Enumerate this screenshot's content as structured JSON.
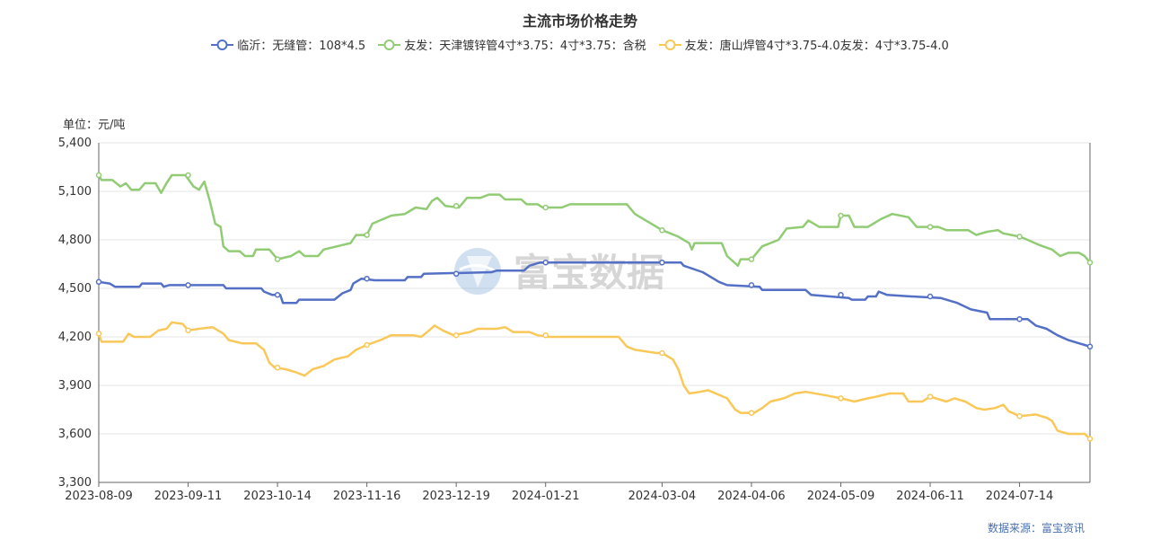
{
  "chart_data": {
    "type": "line",
    "title": "主流市场价格走势",
    "ylabel": "单位：元/吨",
    "ylim": [
      3300,
      5400
    ],
    "yticks": [
      "5,400",
      "5,100",
      "4,800",
      "4,500",
      "4,200",
      "3,900",
      "3,600",
      "3,300"
    ],
    "ytick_values": [
      5400,
      5100,
      4800,
      4500,
      4200,
      3900,
      3600,
      3300
    ],
    "x_range": [
      "2023-08-09",
      "2024-08-09"
    ],
    "xticks": [
      "2023-08-09",
      "2023-09-11",
      "2023-10-14",
      "2023-11-16",
      "2023-12-19",
      "2024-01-21",
      "2024-03-04",
      "2024-04-06",
      "2024-05-09",
      "2024-06-11",
      "2024-07-14"
    ],
    "grid": true,
    "legend": "top-center",
    "series": [
      {
        "name": "临沂：无缝管：108*4.5",
        "color": "#5470c6",
        "points": [
          [
            "2023-08-09",
            4540
          ],
          [
            "2023-08-13",
            4530
          ],
          [
            "2023-08-15",
            4510
          ],
          [
            "2023-08-24",
            4510
          ],
          [
            "2023-08-25",
            4530
          ],
          [
            "2023-09-01",
            4530
          ],
          [
            "2023-09-02",
            4510
          ],
          [
            "2023-09-04",
            4520
          ],
          [
            "2023-09-24",
            4520
          ],
          [
            "2023-09-25",
            4500
          ],
          [
            "2023-10-08",
            4500
          ],
          [
            "2023-10-09",
            4480
          ],
          [
            "2023-10-12",
            4460
          ],
          [
            "2023-10-15",
            4460
          ],
          [
            "2023-10-16",
            4410
          ],
          [
            "2023-10-21",
            4410
          ],
          [
            "2023-10-22",
            4430
          ],
          [
            "2023-11-04",
            4430
          ],
          [
            "2023-11-07",
            4470
          ],
          [
            "2023-11-10",
            4490
          ],
          [
            "2023-11-11",
            4530
          ],
          [
            "2023-11-14",
            4560
          ],
          [
            "2023-11-19",
            4550
          ],
          [
            "2023-11-30",
            4550
          ],
          [
            "2023-12-01",
            4570
          ],
          [
            "2023-12-06",
            4570
          ],
          [
            "2023-12-07",
            4590
          ],
          [
            "2024-01-01",
            4600
          ],
          [
            "2024-01-03",
            4610
          ],
          [
            "2024-01-13",
            4610
          ],
          [
            "2024-01-15",
            4640
          ],
          [
            "2024-01-19",
            4660
          ],
          [
            "2024-03-11",
            4660
          ],
          [
            "2024-03-12",
            4640
          ],
          [
            "2024-03-19",
            4600
          ],
          [
            "2024-03-21",
            4580
          ],
          [
            "2024-03-25",
            4540
          ],
          [
            "2024-03-28",
            4520
          ],
          [
            "2024-04-09",
            4510
          ],
          [
            "2024-04-10",
            4490
          ],
          [
            "2024-04-26",
            4490
          ],
          [
            "2024-04-28",
            4460
          ],
          [
            "2024-05-12",
            4440
          ],
          [
            "2024-05-13",
            4430
          ],
          [
            "2024-05-18",
            4430
          ],
          [
            "2024-05-19",
            4450
          ],
          [
            "2024-05-22",
            4450
          ],
          [
            "2024-05-23",
            4480
          ],
          [
            "2024-05-26",
            4460
          ],
          [
            "2024-06-04",
            4450
          ],
          [
            "2024-06-15",
            4440
          ],
          [
            "2024-06-19",
            4420
          ],
          [
            "2024-06-21",
            4410
          ],
          [
            "2024-06-26",
            4370
          ],
          [
            "2024-07-02",
            4350
          ],
          [
            "2024-07-03",
            4310
          ],
          [
            "2024-07-17",
            4310
          ],
          [
            "2024-07-20",
            4270
          ],
          [
            "2024-07-24",
            4250
          ],
          [
            "2024-07-28",
            4210
          ],
          [
            "2024-08-01",
            4180
          ],
          [
            "2024-08-05",
            4160
          ],
          [
            "2024-08-07",
            4150
          ],
          [
            "2024-08-09",
            4140
          ]
        ]
      },
      {
        "name": "友发：天津镀锌管4寸*3.75：4寸*3.75：含税",
        "color": "#91cc75",
        "points": [
          [
            "2023-08-09",
            5200
          ],
          [
            "2023-08-10",
            5170
          ],
          [
            "2023-08-14",
            5170
          ],
          [
            "2023-08-17",
            5130
          ],
          [
            "2023-08-19",
            5150
          ],
          [
            "2023-08-21",
            5110
          ],
          [
            "2023-08-24",
            5110
          ],
          [
            "2023-08-26",
            5150
          ],
          [
            "2023-08-30",
            5150
          ],
          [
            "2023-09-01",
            5090
          ],
          [
            "2023-09-03",
            5150
          ],
          [
            "2023-09-05",
            5200
          ],
          [
            "2023-09-10",
            5200
          ],
          [
            "2023-09-13",
            5130
          ],
          [
            "2023-09-15",
            5110
          ],
          [
            "2023-09-17",
            5160
          ],
          [
            "2023-09-19",
            5040
          ],
          [
            "2023-09-21",
            4900
          ],
          [
            "2023-09-23",
            4880
          ],
          [
            "2023-09-24",
            4760
          ],
          [
            "2023-09-26",
            4730
          ],
          [
            "2023-09-30",
            4730
          ],
          [
            "2023-10-02",
            4700
          ],
          [
            "2023-10-05",
            4700
          ],
          [
            "2023-10-06",
            4740
          ],
          [
            "2023-10-11",
            4740
          ],
          [
            "2023-10-14",
            4680
          ],
          [
            "2023-10-19",
            4700
          ],
          [
            "2023-10-22",
            4730
          ],
          [
            "2023-10-24",
            4700
          ],
          [
            "2023-10-29",
            4700
          ],
          [
            "2023-10-31",
            4740
          ],
          [
            "2023-11-05",
            4760
          ],
          [
            "2023-11-10",
            4780
          ],
          [
            "2023-11-12",
            4830
          ],
          [
            "2023-11-16",
            4830
          ],
          [
            "2023-11-18",
            4900
          ],
          [
            "2023-11-25",
            4950
          ],
          [
            "2023-11-30",
            4960
          ],
          [
            "2023-12-04",
            5000
          ],
          [
            "2023-12-08",
            4990
          ],
          [
            "2023-12-10",
            5040
          ],
          [
            "2023-12-12",
            5060
          ],
          [
            "2023-12-15",
            5010
          ],
          [
            "2023-12-20",
            5000
          ],
          [
            "2023-12-23",
            5060
          ],
          [
            "2023-12-28",
            5060
          ],
          [
            "2023-12-31",
            5080
          ],
          [
            "2024-01-04",
            5080
          ],
          [
            "2024-01-06",
            5050
          ],
          [
            "2024-01-12",
            5050
          ],
          [
            "2024-01-14",
            5020
          ],
          [
            "2024-01-18",
            5020
          ],
          [
            "2024-01-20",
            5000
          ],
          [
            "2024-01-27",
            5000
          ],
          [
            "2024-01-30",
            5020
          ],
          [
            "2024-02-20",
            5020
          ],
          [
            "2024-02-23",
            4960
          ],
          [
            "2024-02-27",
            4920
          ],
          [
            "2024-03-02",
            4880
          ],
          [
            "2024-03-04",
            4860
          ],
          [
            "2024-03-10",
            4820
          ],
          [
            "2024-03-14",
            4780
          ],
          [
            "2024-03-15",
            4740
          ],
          [
            "2024-03-16",
            4780
          ],
          [
            "2024-03-26",
            4780
          ],
          [
            "2024-03-28",
            4700
          ],
          [
            "2024-04-01",
            4640
          ],
          [
            "2024-04-02",
            4680
          ],
          [
            "2024-04-06",
            4680
          ],
          [
            "2024-04-10",
            4760
          ],
          [
            "2024-04-16",
            4800
          ],
          [
            "2024-04-19",
            4870
          ],
          [
            "2024-04-25",
            4880
          ],
          [
            "2024-04-27",
            4920
          ],
          [
            "2024-05-01",
            4880
          ],
          [
            "2024-05-08",
            4880
          ],
          [
            "2024-05-09",
            4950
          ],
          [
            "2024-05-12",
            4950
          ],
          [
            "2024-05-14",
            4880
          ],
          [
            "2024-05-19",
            4880
          ],
          [
            "2024-05-22",
            4910
          ],
          [
            "2024-05-24",
            4930
          ],
          [
            "2024-05-28",
            4960
          ],
          [
            "2024-06-03",
            4940
          ],
          [
            "2024-06-06",
            4880
          ],
          [
            "2024-06-14",
            4880
          ],
          [
            "2024-06-17",
            4860
          ],
          [
            "2024-06-25",
            4860
          ],
          [
            "2024-06-28",
            4830
          ],
          [
            "2024-07-02",
            4850
          ],
          [
            "2024-07-06",
            4860
          ],
          [
            "2024-07-08",
            4840
          ],
          [
            "2024-07-14",
            4820
          ],
          [
            "2024-07-17",
            4800
          ],
          [
            "2024-07-21",
            4770
          ],
          [
            "2024-07-26",
            4740
          ],
          [
            "2024-07-29",
            4700
          ],
          [
            "2024-08-01",
            4720
          ],
          [
            "2024-08-05",
            4720
          ],
          [
            "2024-08-07",
            4700
          ],
          [
            "2024-08-09",
            4660
          ]
        ]
      },
      {
        "name": "友发：唐山焊管4寸*3.75-4.0友发：4寸*3.75-4.0",
        "color": "#fac858",
        "points": [
          [
            "2023-08-09",
            4220
          ],
          [
            "2023-08-10",
            4170
          ],
          [
            "2023-08-18",
            4170
          ],
          [
            "2023-08-20",
            4220
          ],
          [
            "2023-08-22",
            4200
          ],
          [
            "2023-08-28",
            4200
          ],
          [
            "2023-08-31",
            4240
          ],
          [
            "2023-09-03",
            4250
          ],
          [
            "2023-09-05",
            4290
          ],
          [
            "2023-09-09",
            4280
          ],
          [
            "2023-09-11",
            4240
          ],
          [
            "2023-09-15",
            4250
          ],
          [
            "2023-09-20",
            4260
          ],
          [
            "2023-09-24",
            4220
          ],
          [
            "2023-09-26",
            4180
          ],
          [
            "2023-10-01",
            4160
          ],
          [
            "2023-10-06",
            4160
          ],
          [
            "2023-10-09",
            4120
          ],
          [
            "2023-10-11",
            4040
          ],
          [
            "2023-10-13",
            4010
          ],
          [
            "2023-10-17",
            4000
          ],
          [
            "2023-10-21",
            3980
          ],
          [
            "2023-10-24",
            3960
          ],
          [
            "2023-10-27",
            4000
          ],
          [
            "2023-10-31",
            4020
          ],
          [
            "2023-11-04",
            4060
          ],
          [
            "2023-11-09",
            4080
          ],
          [
            "2023-11-12",
            4120
          ],
          [
            "2023-11-16",
            4150
          ],
          [
            "2023-11-21",
            4180
          ],
          [
            "2023-11-25",
            4210
          ],
          [
            "2023-12-03",
            4210
          ],
          [
            "2023-12-06",
            4200
          ],
          [
            "2023-12-09",
            4240
          ],
          [
            "2023-12-11",
            4270
          ],
          [
            "2023-12-14",
            4240
          ],
          [
            "2023-12-18",
            4210
          ],
          [
            "2023-12-24",
            4230
          ],
          [
            "2023-12-27",
            4250
          ],
          [
            "2024-01-03",
            4250
          ],
          [
            "2024-01-06",
            4260
          ],
          [
            "2024-01-09",
            4230
          ],
          [
            "2024-01-15",
            4230
          ],
          [
            "2024-01-18",
            4210
          ],
          [
            "2024-01-22",
            4200
          ],
          [
            "2024-02-17",
            4200
          ],
          [
            "2024-02-20",
            4140
          ],
          [
            "2024-02-23",
            4120
          ],
          [
            "2024-03-02",
            4100
          ],
          [
            "2024-03-04",
            4100
          ],
          [
            "2024-03-08",
            4060
          ],
          [
            "2024-03-10",
            4000
          ],
          [
            "2024-03-12",
            3900
          ],
          [
            "2024-03-14",
            3850
          ],
          [
            "2024-03-18",
            3860
          ],
          [
            "2024-03-21",
            3870
          ],
          [
            "2024-03-28",
            3820
          ],
          [
            "2024-03-31",
            3750
          ],
          [
            "2024-04-02",
            3730
          ],
          [
            "2024-04-07",
            3730
          ],
          [
            "2024-04-10",
            3760
          ],
          [
            "2024-04-13",
            3800
          ],
          [
            "2024-04-18",
            3820
          ],
          [
            "2024-04-22",
            3850
          ],
          [
            "2024-04-26",
            3860
          ],
          [
            "2024-05-03",
            3840
          ],
          [
            "2024-05-09",
            3820
          ],
          [
            "2024-05-14",
            3800
          ],
          [
            "2024-05-19",
            3820
          ],
          [
            "2024-05-22",
            3830
          ],
          [
            "2024-05-27",
            3850
          ],
          [
            "2024-06-01",
            3850
          ],
          [
            "2024-06-03",
            3800
          ],
          [
            "2024-06-08",
            3800
          ],
          [
            "2024-06-11",
            3830
          ],
          [
            "2024-06-17",
            3800
          ],
          [
            "2024-06-20",
            3820
          ],
          [
            "2024-06-24",
            3800
          ],
          [
            "2024-06-28",
            3760
          ],
          [
            "2024-07-01",
            3750
          ],
          [
            "2024-07-05",
            3760
          ],
          [
            "2024-07-08",
            3780
          ],
          [
            "2024-07-10",
            3740
          ],
          [
            "2024-07-14",
            3710
          ],
          [
            "2024-07-20",
            3720
          ],
          [
            "2024-07-24",
            3700
          ],
          [
            "2024-07-26",
            3680
          ],
          [
            "2024-07-28",
            3620
          ],
          [
            "2024-08-01",
            3600
          ],
          [
            "2024-08-07",
            3600
          ],
          [
            "2024-08-09",
            3570
          ]
        ]
      }
    ]
  },
  "unit_label": "单位：元/吨",
  "source_label": "数据来源：富宝资讯",
  "watermark_text": "富宝数据",
  "axis_color": "#666666",
  "grid_color": "#e6e6e6"
}
